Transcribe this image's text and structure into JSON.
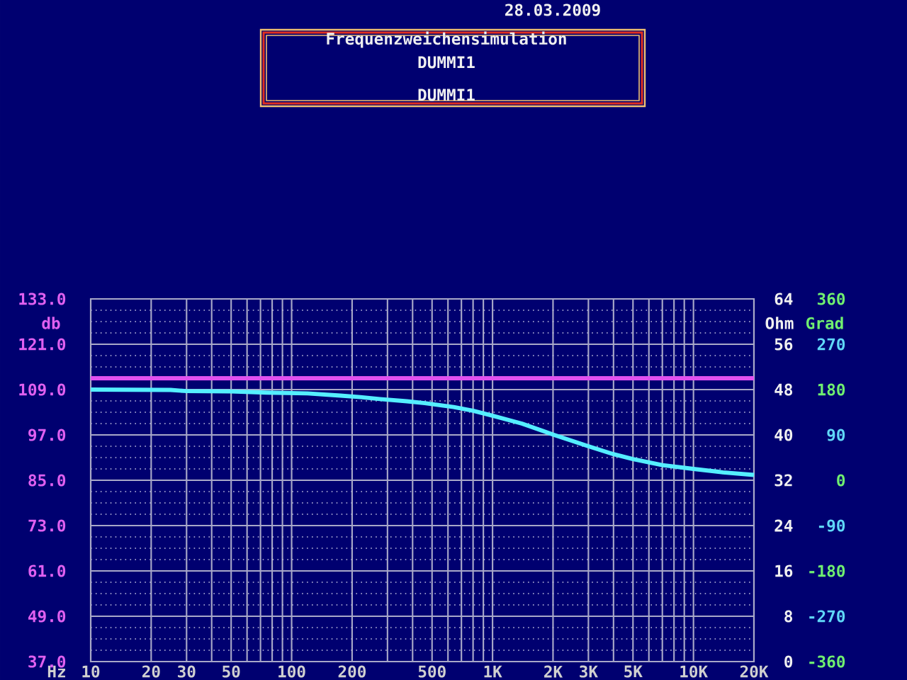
{
  "chart_data": {
    "type": "line",
    "title": "Frequenzweichensimulation",
    "annotations": [
      "28.03.2009",
      "DUMMI1",
      "DUMMI1"
    ],
    "xlabel": "Hz",
    "ylabel": "db",
    "y2label": "Ohm",
    "y3label": "Grad",
    "log": "x",
    "grid": true,
    "line_style": "solid",
    "marker": "none",
    "xlim": [
      10,
      20000
    ],
    "xticks": [
      10,
      20,
      30,
      {
        "value": 40,
        "label": null
      },
      50,
      {
        "value": 60,
        "label": null
      },
      {
        "value": 70,
        "label": null
      },
      {
        "value": 80,
        "label": null
      },
      {
        "value": 90,
        "label": null
      },
      100,
      200,
      {
        "value": 300,
        "label": null
      },
      {
        "value": 400,
        "label": null
      },
      500,
      {
        "value": 600,
        "label": null
      },
      {
        "value": 700,
        "label": null
      },
      {
        "value": 800,
        "label": null
      },
      {
        "value": 900,
        "label": null
      },
      {
        "value": 1000,
        "label": "1K"
      },
      {
        "value": 2000,
        "label": "2K"
      },
      {
        "value": 3000,
        "label": "3K"
      },
      {
        "value": 4000,
        "label": null
      },
      {
        "value": 5000,
        "label": "5K"
      },
      {
        "value": 6000,
        "label": null
      },
      {
        "value": 7000,
        "label": null
      },
      {
        "value": 8000,
        "label": null
      },
      {
        "value": 9000,
        "label": null
      },
      {
        "value": 10000,
        "label": "10K"
      },
      {
        "value": 20000,
        "label": "20K"
      }
    ],
    "ylim": [
      37,
      133
    ],
    "yticks": [
      {
        "value": 37,
        "label": "37.0"
      },
      {
        "value": 40,
        "label": null
      },
      {
        "value": 43,
        "label": null
      },
      {
        "value": 46,
        "label": null
      },
      {
        "value": 49,
        "label": "49.0"
      },
      {
        "value": 52,
        "label": null
      },
      {
        "value": 55,
        "label": null
      },
      {
        "value": 58,
        "label": null
      },
      {
        "value": 61,
        "label": "61.0"
      },
      {
        "value": 64,
        "label": null
      },
      {
        "value": 67,
        "label": null
      },
      {
        "value": 70,
        "label": null
      },
      {
        "value": 73,
        "label": "73.0"
      },
      {
        "value": 76,
        "label": null
      },
      {
        "value": 79,
        "label": null
      },
      {
        "value": 82,
        "label": null
      },
      {
        "value": 85,
        "label": "85.0"
      },
      {
        "value": 88,
        "label": null
      },
      {
        "value": 91,
        "label": null
      },
      {
        "value": 94,
        "label": null
      },
      {
        "value": 97,
        "label": "97.0"
      },
      {
        "value": 100,
        "label": null
      },
      {
        "value": 103,
        "label": null
      },
      {
        "value": 106,
        "label": null
      },
      {
        "value": 109,
        "label": "109.0"
      },
      {
        "value": 112,
        "label": null
      },
      {
        "value": 115,
        "label": null
      },
      {
        "value": 118,
        "label": null
      },
      {
        "value": 121,
        "label": "121.0"
      },
      {
        "value": 124,
        "label": null
      },
      {
        "value": 127,
        "label": null
      },
      {
        "value": 130,
        "label": null
      },
      {
        "value": 133,
        "label": "133.0"
      }
    ],
    "y2lim": [
      0,
      64
    ],
    "y2ticks": [
      0,
      8,
      16,
      24,
      32,
      40,
      48,
      56,
      64
    ],
    "y3lim": [
      -360,
      360
    ],
    "y3ticks": [
      -360,
      -270,
      -180,
      -90,
      0,
      90,
      180,
      270,
      360
    ],
    "series": [
      {
        "color": "#e050f0",
        "x": [
          10,
          20000
        ],
        "values": [
          112,
          112
        ]
      },
      {
        "color": "#55eeff",
        "x": [
          10,
          25,
          30,
          50,
          75,
          120,
          175,
          220,
          275,
          375,
          460,
          640,
          800,
          1000,
          1400,
          2000,
          3000,
          4000,
          5000,
          7000,
          10000,
          14000,
          20000
        ],
        "values": [
          109,
          108.9,
          108.6,
          108.5,
          108.2,
          108,
          107.4,
          107,
          106.5,
          105.9,
          105.4,
          104.4,
          103.4,
          102.1,
          100,
          97.1,
          94,
          91.9,
          90.6,
          89,
          88,
          87.1,
          86.4
        ]
      }
    ]
  }
}
